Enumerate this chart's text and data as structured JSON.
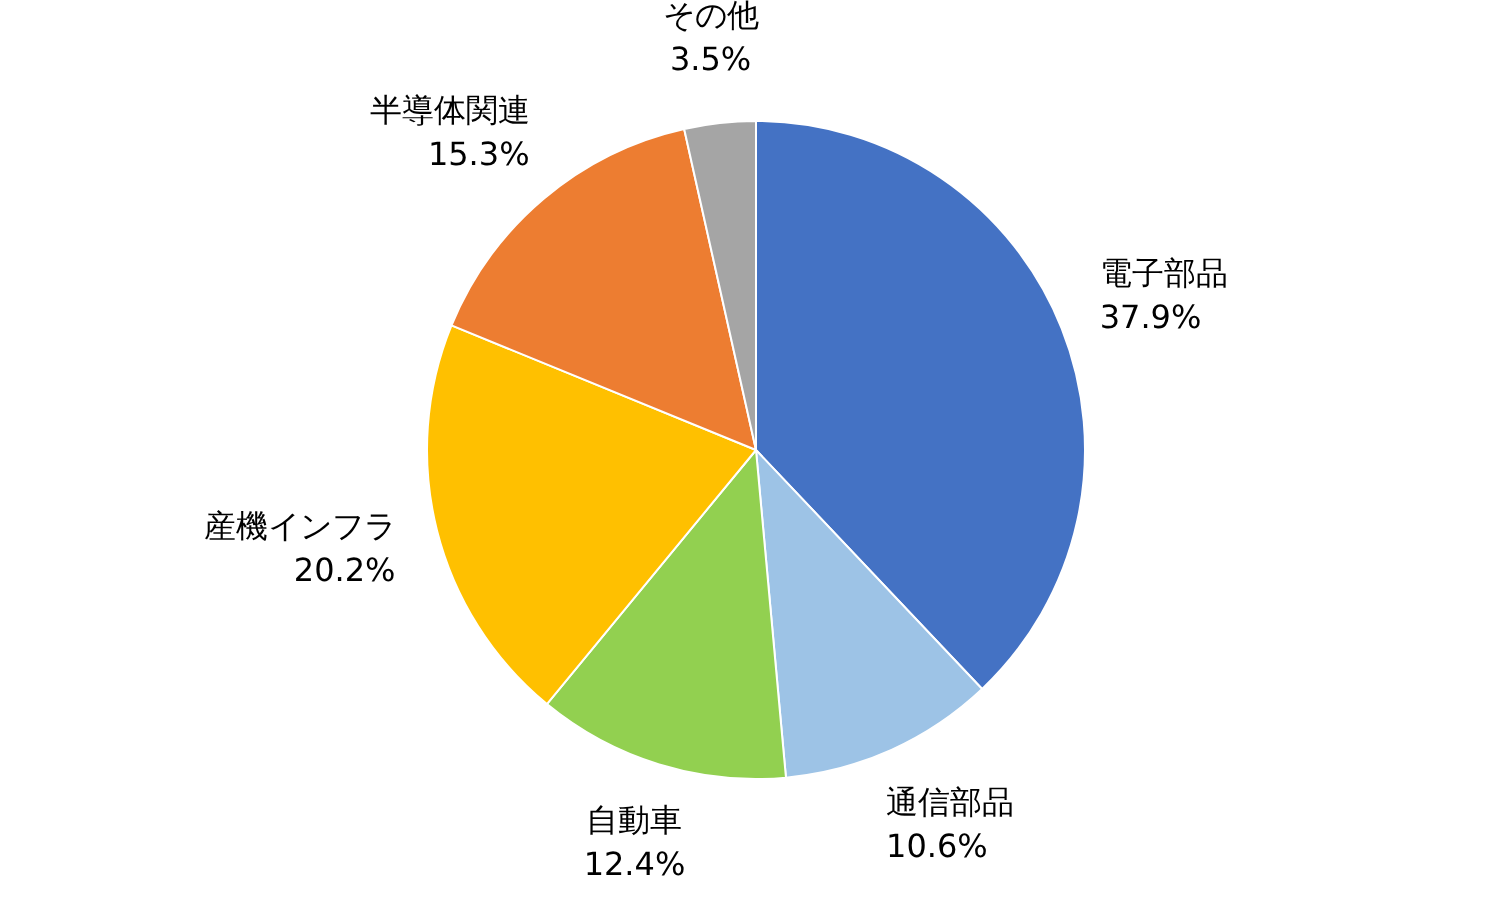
{
  "chart_data": {
    "type": "pie",
    "categories": [
      "電子部品",
      "通信部品",
      "自動車",
      "産機インフラ",
      "半導体関連",
      "その他"
    ],
    "values": [
      37.9,
      10.6,
      12.4,
      20.2,
      15.3,
      3.5
    ],
    "value_labels": [
      "37.9%",
      "10.6%",
      "12.4%",
      "20.2%",
      "15.3%",
      "3.5%"
    ],
    "colors": [
      "#4472c4",
      "#9dc3e6",
      "#92d050",
      "#ffc000",
      "#ed7d31",
      "#a5a5a5"
    ],
    "legend": false
  }
}
